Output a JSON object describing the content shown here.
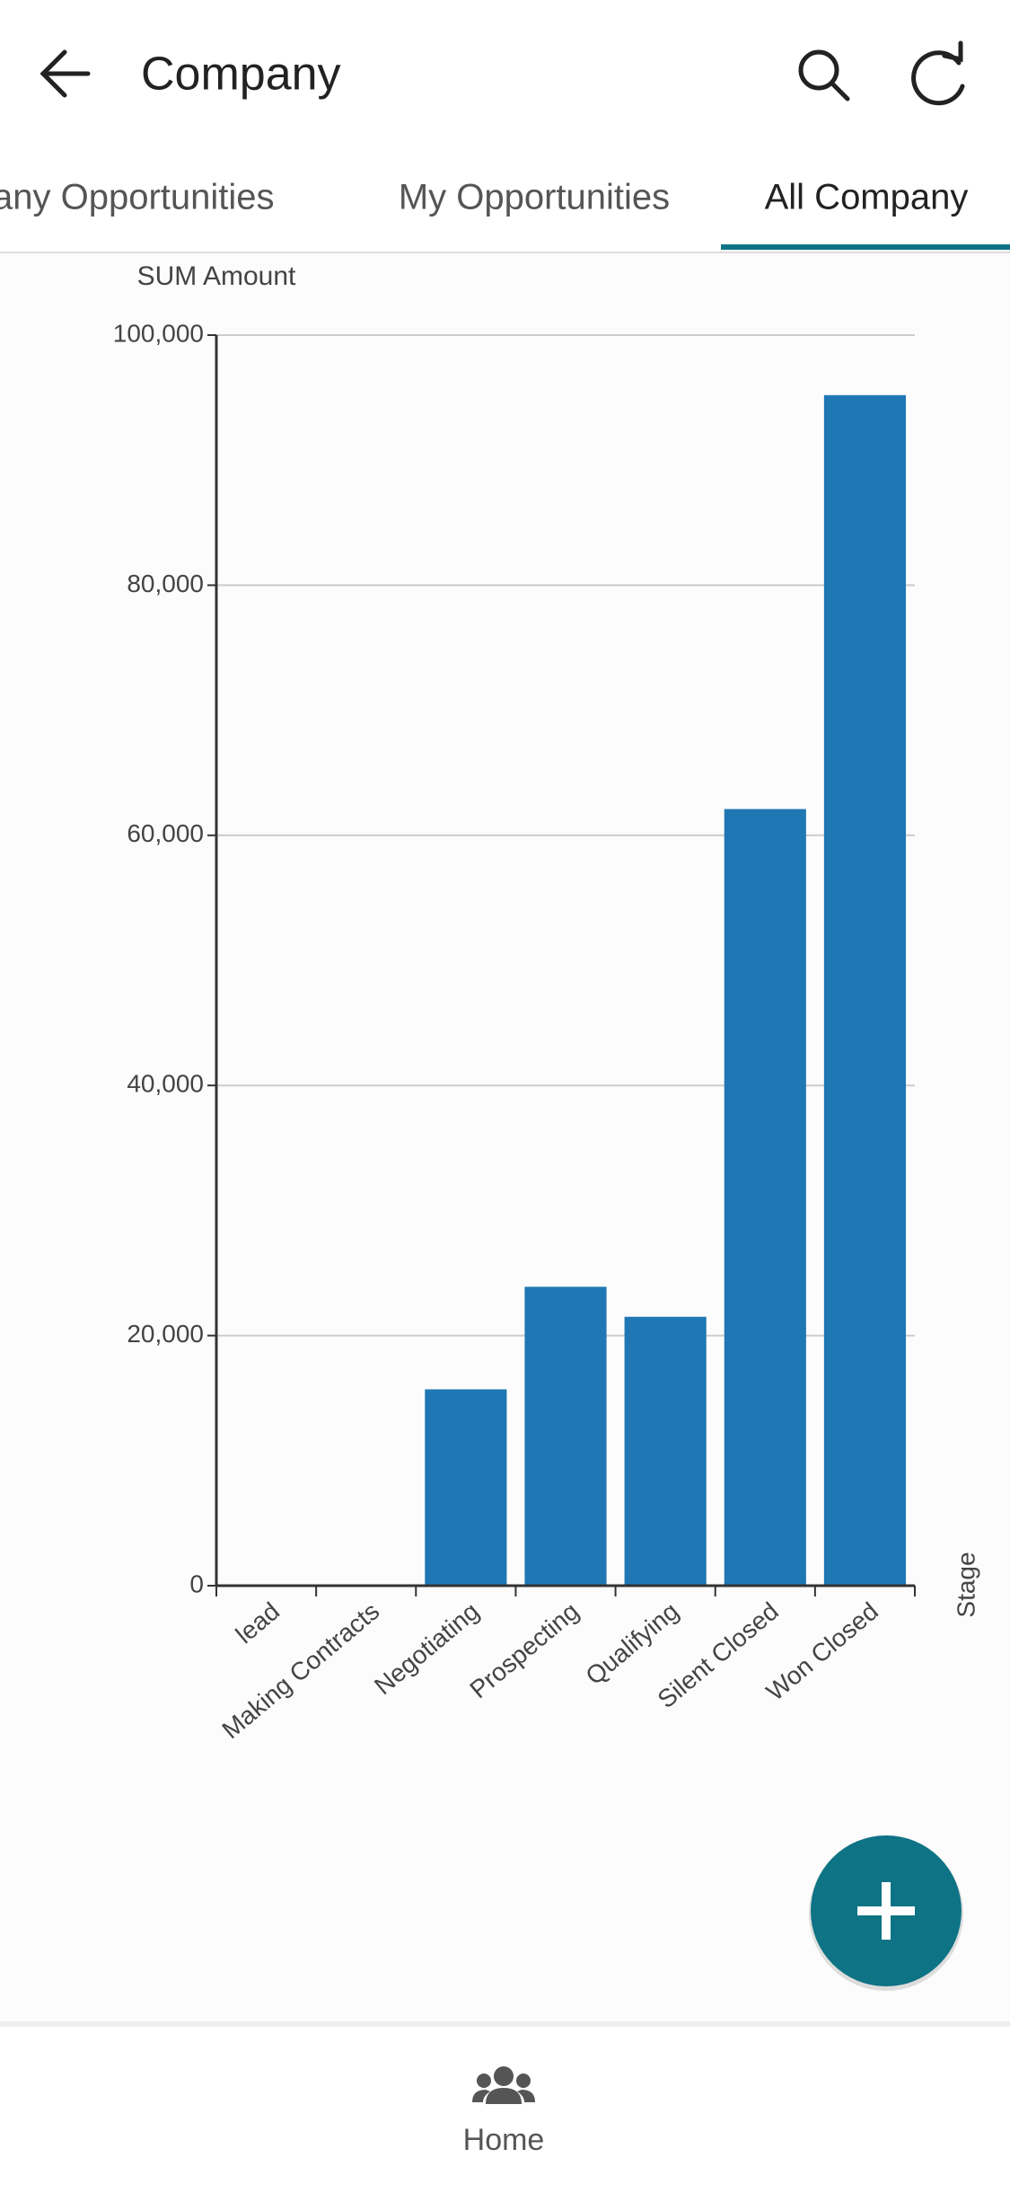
{
  "header": {
    "title": "Company"
  },
  "tabs": [
    "any Opportunities",
    "My Opportunities",
    "All Company"
  ],
  "chart_data": {
    "type": "bar",
    "y_label": "SUM Amount",
    "x_label": "Stage",
    "categories": [
      "lead",
      "Making Contracts",
      "Negotiating",
      "Prospecting",
      "Qualifying",
      "Silent Closed",
      "Won Closed"
    ],
    "values": [
      0,
      0,
      15700,
      23900,
      21500,
      62100,
      95200
    ],
    "color": "#1f77b4",
    "ylim": [
      0,
      100000
    ],
    "yticks": [
      0,
      {
        "value": 20000,
        "label": "20,000"
      },
      {
        "value": 40000,
        "label": "40,000"
      },
      {
        "value": 60000,
        "label": "60,000"
      },
      {
        "value": 80000,
        "label": "80,000"
      },
      {
        "value": 100000,
        "label": "100,000"
      }
    ],
    "grid": true
  },
  "nav": {
    "home": "Home"
  }
}
